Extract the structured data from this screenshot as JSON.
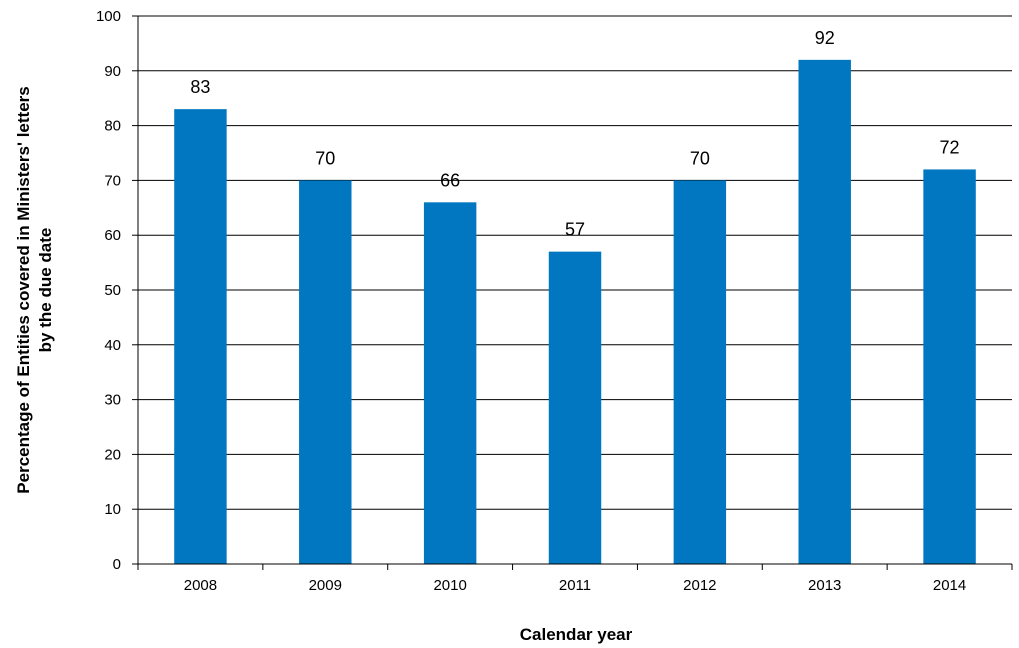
{
  "chart_data": {
    "type": "bar",
    "categories": [
      "2008",
      "2009",
      "2010",
      "2011",
      "2012",
      "2013",
      "2014"
    ],
    "values": [
      83,
      70,
      66,
      57,
      70,
      92,
      72
    ],
    "xlabel": "Calendar year",
    "ylabel_line1": "Percentage of Entities covered in Ministers' letters",
    "ylabel_line2": "by the due date",
    "ylim": [
      0,
      100
    ],
    "yticks": [
      "0",
      "10",
      "20",
      "30",
      "40",
      "50",
      "60",
      "70",
      "80",
      "90",
      "100"
    ],
    "grid": true,
    "bar_color": "#0077c0",
    "data_labels": true
  }
}
